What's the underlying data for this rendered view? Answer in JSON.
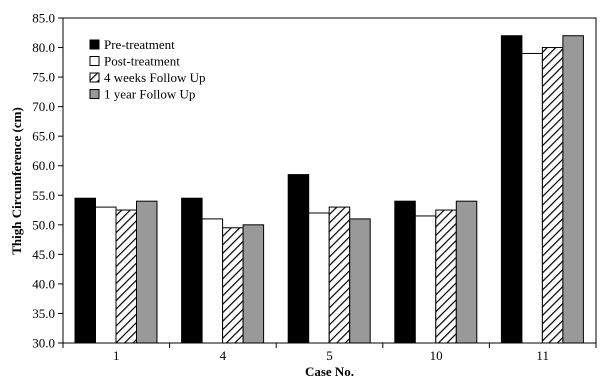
{
  "chart_data": {
    "type": "bar",
    "categories": [
      "1",
      "4",
      "5",
      "10",
      "11"
    ],
    "series": [
      {
        "name": "Pre-treatment",
        "values": [
          54.5,
          54.5,
          58.5,
          54.0,
          82.0
        ],
        "color": "#000000",
        "pattern": "solid"
      },
      {
        "name": "Post-treatment",
        "values": [
          53.0,
          51.0,
          52.0,
          51.5,
          79.0
        ],
        "color": "#ffffff",
        "pattern": "outline"
      },
      {
        "name": "4 weeks Follow Up",
        "values": [
          52.5,
          49.5,
          53.0,
          52.5,
          80.0
        ],
        "color": "#000000",
        "pattern": "diagonal-hatch"
      },
      {
        "name": "1 year Follow Up",
        "values": [
          54.0,
          50.0,
          51.0,
          54.0,
          82.0
        ],
        "color": "#999999",
        "pattern": "solid"
      }
    ],
    "xlabel": "Case No.",
    "ylabel": "Thigh Circumference (cm)",
    "ylim": [
      30.0,
      85.0
    ],
    "yticks": [
      "30.0",
      "35.0",
      "40.0",
      "45.0",
      "50.0",
      "55.0",
      "60.0",
      "65.0",
      "70.0",
      "75.0",
      "80.0",
      "85.0"
    ],
    "legend_position": "top-left",
    "grid": false
  }
}
